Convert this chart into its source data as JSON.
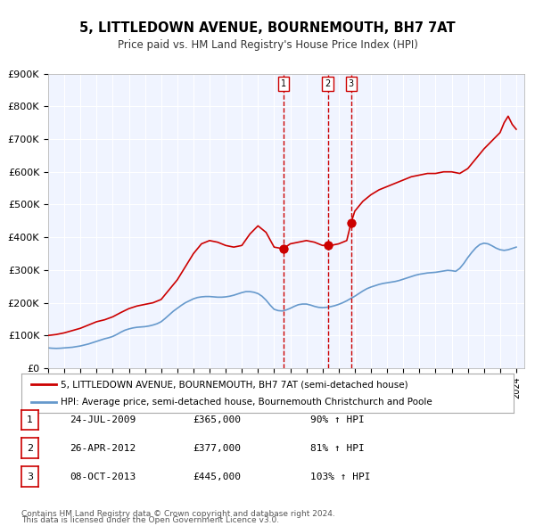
{
  "title": "5, LITTLEDOWN AVENUE, BOURNEMOUTH, BH7 7AT",
  "subtitle": "Price paid vs. HM Land Registry's House Price Index (HPI)",
  "legend_line1": "5, LITTLEDOWN AVENUE, BOURNEMOUTH, BH7 7AT (semi-detached house)",
  "legend_line2": "HPI: Average price, semi-detached house, Bournemouth Christchurch and Poole",
  "footer1": "Contains HM Land Registry data © Crown copyright and database right 2024.",
  "footer2": "This data is licensed under the Open Government Licence v3.0.",
  "hpi_color": "#6699cc",
  "price_color": "#cc0000",
  "dot_color": "#cc0000",
  "vline_color": "#cc0000",
  "background_color": "#f0f4ff",
  "plot_bg_color": "#f0f4ff",
  "ylim": [
    0,
    900000
  ],
  "yticks": [
    0,
    100000,
    200000,
    300000,
    400000,
    500000,
    600000,
    700000,
    800000,
    900000
  ],
  "ytick_labels": [
    "£0",
    "£100K",
    "£200K",
    "£300K",
    "£400K",
    "£500K",
    "£600K",
    "£700K",
    "£800K",
    "£900K"
  ],
  "sale_points": [
    {
      "label": "1",
      "date_str": "24-JUL-2009",
      "price": 365000,
      "pct": "90%",
      "year": 2009.56
    },
    {
      "label": "2",
      "date_str": "26-APR-2012",
      "price": 377000,
      "pct": "81%",
      "year": 2012.32
    },
    {
      "label": "3",
      "date_str": "08-OCT-2013",
      "price": 445000,
      "pct": "103%",
      "year": 2013.77
    }
  ],
  "hpi_data": {
    "years": [
      1995,
      1995.25,
      1995.5,
      1995.75,
      1996,
      1996.25,
      1996.5,
      1996.75,
      1997,
      1997.25,
      1997.5,
      1997.75,
      1998,
      1998.25,
      1998.5,
      1998.75,
      1999,
      1999.25,
      1999.5,
      1999.75,
      2000,
      2000.25,
      2000.5,
      2000.75,
      2001,
      2001.25,
      2001.5,
      2001.75,
      2002,
      2002.25,
      2002.5,
      2002.75,
      2003,
      2003.25,
      2003.5,
      2003.75,
      2004,
      2004.25,
      2004.5,
      2004.75,
      2005,
      2005.25,
      2005.5,
      2005.75,
      2006,
      2006.25,
      2006.5,
      2006.75,
      2007,
      2007.25,
      2007.5,
      2007.75,
      2008,
      2008.25,
      2008.5,
      2008.75,
      2009,
      2009.25,
      2009.5,
      2009.75,
      2010,
      2010.25,
      2010.5,
      2010.75,
      2011,
      2011.25,
      2011.5,
      2011.75,
      2012,
      2012.25,
      2012.5,
      2012.75,
      2013,
      2013.25,
      2013.5,
      2013.75,
      2014,
      2014.25,
      2014.5,
      2014.75,
      2015,
      2015.25,
      2015.5,
      2015.75,
      2016,
      2016.25,
      2016.5,
      2016.75,
      2017,
      2017.25,
      2017.5,
      2017.75,
      2018,
      2018.25,
      2018.5,
      2018.75,
      2019,
      2019.25,
      2019.5,
      2019.75,
      2020,
      2020.25,
      2020.5,
      2020.75,
      2021,
      2021.25,
      2021.5,
      2021.75,
      2022,
      2022.25,
      2022.5,
      2022.75,
      2023,
      2023.25,
      2023.5,
      2023.75,
      2024
    ],
    "values": [
      62000,
      61000,
      60500,
      61000,
      62000,
      63000,
      64000,
      66000,
      68000,
      71000,
      74000,
      78000,
      82000,
      86000,
      90000,
      93000,
      97000,
      103000,
      110000,
      116000,
      120000,
      123000,
      125000,
      126000,
      127000,
      129000,
      132000,
      136000,
      142000,
      152000,
      163000,
      174000,
      183000,
      192000,
      200000,
      206000,
      212000,
      216000,
      218000,
      219000,
      219000,
      218000,
      217000,
      217000,
      218000,
      220000,
      223000,
      227000,
      231000,
      234000,
      234000,
      232000,
      228000,
      220000,
      208000,
      193000,
      180000,
      176000,
      175000,
      178000,
      183000,
      189000,
      194000,
      196000,
      196000,
      193000,
      189000,
      186000,
      185000,
      186000,
      188000,
      191000,
      195000,
      200000,
      206000,
      213000,
      220000,
      228000,
      236000,
      243000,
      248000,
      252000,
      256000,
      259000,
      261000,
      263000,
      265000,
      268000,
      272000,
      276000,
      280000,
      284000,
      287000,
      289000,
      291000,
      292000,
      293000,
      295000,
      297000,
      299000,
      298000,
      296000,
      305000,
      320000,
      338000,
      354000,
      368000,
      378000,
      382000,
      380000,
      374000,
      367000,
      362000,
      360000,
      362000,
      366000,
      370000
    ]
  },
  "price_data": {
    "years": [
      1995,
      1995.08,
      1995.5,
      1996,
      1996.5,
      1997,
      1997.5,
      1998,
      1998.5,
      1999,
      1999.5,
      2000,
      2000.5,
      2001,
      2001.5,
      2002,
      2002.5,
      2003,
      2003.5,
      2004,
      2004.5,
      2005,
      2005.5,
      2006,
      2006.5,
      2007,
      2007.5,
      2008,
      2008.5,
      2009,
      2009.56,
      2010,
      2010.5,
      2011,
      2011.5,
      2012,
      2012.32,
      2012.5,
      2013,
      2013.5,
      2013.77,
      2014,
      2014.5,
      2015,
      2015.5,
      2016,
      2016.5,
      2017,
      2017.5,
      2018,
      2018.5,
      2019,
      2019.5,
      2020,
      2020.5,
      2021,
      2021.5,
      2022,
      2022.5,
      2023,
      2023.25,
      2023.5,
      2023.75,
      2024
    ],
    "values": [
      100000,
      100500,
      103000,
      108000,
      115000,
      122000,
      132000,
      142000,
      148000,
      157000,
      170000,
      182000,
      190000,
      195000,
      200000,
      210000,
      240000,
      270000,
      310000,
      350000,
      380000,
      390000,
      385000,
      375000,
      370000,
      375000,
      410000,
      435000,
      415000,
      370000,
      365000,
      380000,
      385000,
      390000,
      385000,
      375000,
      377000,
      375000,
      380000,
      390000,
      445000,
      480000,
      510000,
      530000,
      545000,
      555000,
      565000,
      575000,
      585000,
      590000,
      595000,
      595000,
      600000,
      600000,
      595000,
      610000,
      640000,
      670000,
      695000,
      720000,
      750000,
      770000,
      745000,
      730000
    ]
  }
}
